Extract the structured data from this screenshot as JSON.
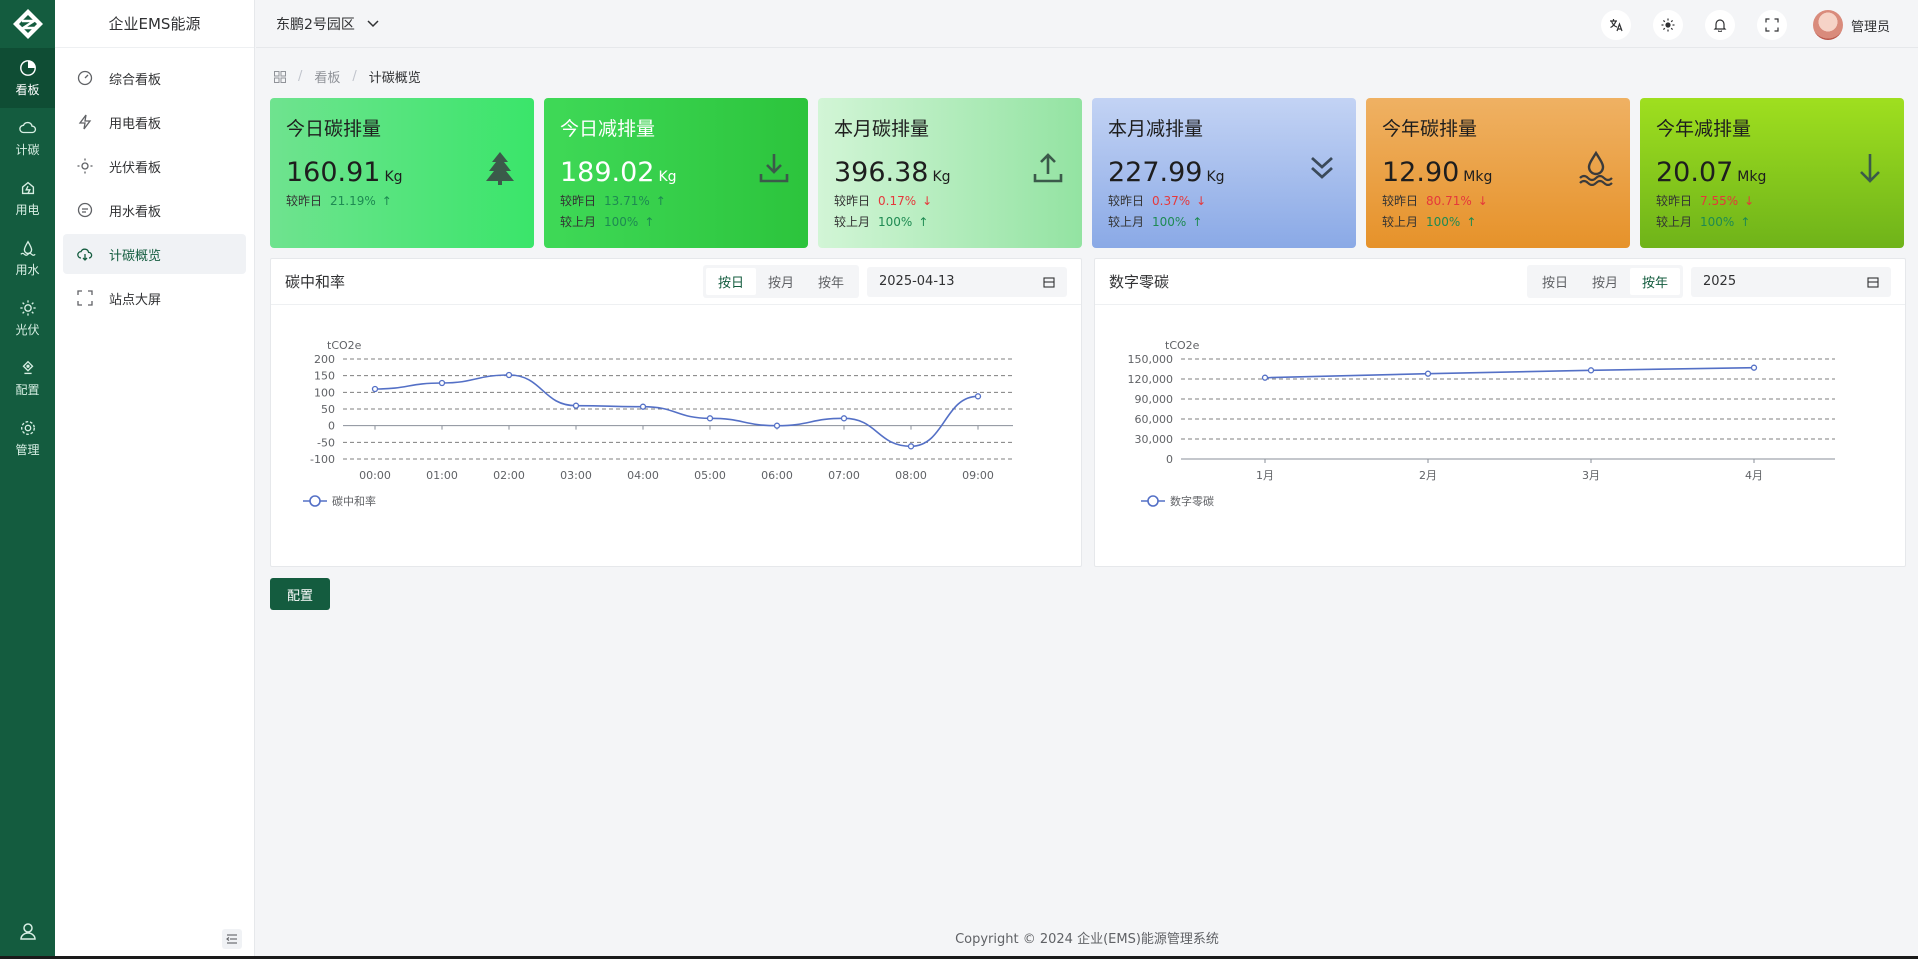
{
  "rail": {
    "items": [
      {
        "label": "看板",
        "icon": "chart-pie-icon"
      },
      {
        "label": "计碳",
        "icon": "cloud-icon"
      },
      {
        "label": "用电",
        "icon": "plug-icon"
      },
      {
        "label": "用水",
        "icon": "water-drop-icon"
      },
      {
        "label": "光伏",
        "icon": "sun-icon"
      },
      {
        "label": "配置",
        "icon": "config-icon"
      },
      {
        "label": "管理",
        "icon": "gear-icon"
      }
    ]
  },
  "sidebar": {
    "brand": "企业EMS能源",
    "items": [
      {
        "label": "综合看板",
        "icon": "dashboard-icon"
      },
      {
        "label": "用电看板",
        "icon": "lightning-icon"
      },
      {
        "label": "光伏看板",
        "icon": "sun-icon"
      },
      {
        "label": "用水看板",
        "icon": "chat-icon"
      },
      {
        "label": "计碳概览",
        "icon": "cloud-download-icon"
      },
      {
        "label": "站点大屏",
        "icon": "fullscreen-icon"
      }
    ]
  },
  "header": {
    "park": "东鹏2号园区",
    "user": "管理员"
  },
  "breadcrumb": {
    "items": [
      "看板",
      "计碳概览"
    ]
  },
  "kpis": [
    {
      "title": "今日碳排量",
      "value": "160.91",
      "unit": "Kg",
      "rows": [
        {
          "label": "较昨日",
          "pct": "21.19%",
          "dir": "up"
        }
      ],
      "icon": "tree-icon"
    },
    {
      "title": "今日减排量",
      "value": "189.02",
      "unit": "Kg",
      "rows": [
        {
          "label": "较昨日",
          "pct": "13.71%",
          "dir": "up"
        },
        {
          "label": "较上月",
          "pct": "100%",
          "dir": "up"
        }
      ],
      "icon": "download-icon"
    },
    {
      "title": "本月碳排量",
      "value": "396.38",
      "unit": "Kg",
      "rows": [
        {
          "label": "较昨日",
          "pct": "0.17%",
          "dir": "down"
        },
        {
          "label": "较上月",
          "pct": "100%",
          "dir": "up"
        }
      ],
      "icon": "upload-icon"
    },
    {
      "title": "本月减排量",
      "value": "227.99",
      "unit": "Kg",
      "rows": [
        {
          "label": "较昨日",
          "pct": "0.37%",
          "dir": "down"
        },
        {
          "label": "较上月",
          "pct": "100%",
          "dir": "up"
        }
      ],
      "icon": "double-chevron-down-icon"
    },
    {
      "title": "今年碳排量",
      "value": "12.90",
      "unit": "Mkg",
      "rows": [
        {
          "label": "较昨日",
          "pct": "80.71%",
          "dir": "down"
        },
        {
          "label": "较上月",
          "pct": "100%",
          "dir": "up"
        }
      ],
      "icon": "water-waves-icon"
    },
    {
      "title": "今年减排量",
      "value": "20.07",
      "unit": "Mkg",
      "rows": [
        {
          "label": "较昨日",
          "pct": "7.55%",
          "dir": "down"
        },
        {
          "label": "较上月",
          "pct": "100%",
          "dir": "up"
        }
      ],
      "icon": "arrow-down-icon"
    }
  ],
  "colors": {
    "primary": "#145c3f",
    "up": "#1e8a52",
    "down": "#e5383b",
    "series": "#5470c6"
  },
  "panels": [
    {
      "title": "碳中和率",
      "seg": [
        "按日",
        "按月",
        "按年"
      ],
      "active": 0,
      "date": "2025-04-13"
    },
    {
      "title": "数字零碳",
      "seg": [
        "按日",
        "按月",
        "按年"
      ],
      "active": 2,
      "date": "2025"
    }
  ],
  "chart_data": [
    {
      "type": "line",
      "title": "",
      "ylabel": "tCO2e",
      "categories": [
        "00:00",
        "01:00",
        "02:00",
        "03:00",
        "04:00",
        "05:00",
        "06:00",
        "07:00",
        "08:00",
        "09:00"
      ],
      "series": [
        {
          "name": "碳中和率",
          "values": [
            110,
            128,
            152,
            60,
            57,
            22,
            0,
            22,
            -62,
            88
          ]
        }
      ],
      "yticks": [
        "200",
        "150",
        "100",
        "50",
        "0",
        "-50",
        "-100"
      ],
      "ylim": [
        -100,
        200
      ],
      "grid": true,
      "legend": "bottom-left"
    },
    {
      "type": "line",
      "title": "",
      "ylabel": "tCO2e",
      "categories": [
        "1月",
        "2月",
        "3月",
        "4月"
      ],
      "series": [
        {
          "name": "数字零碳",
          "values": [
            122000,
            128000,
            133000,
            137000
          ]
        }
      ],
      "yticks": [
        "150,000",
        "120,000",
        "90,000",
        "60,000",
        "30,000",
        "0"
      ],
      "ylim": [
        0,
        150000
      ],
      "grid": true,
      "legend": "bottom-left"
    }
  ],
  "config_button": "配置",
  "footer": "Copyright © 2024 企业(EMS)能源管理系统"
}
